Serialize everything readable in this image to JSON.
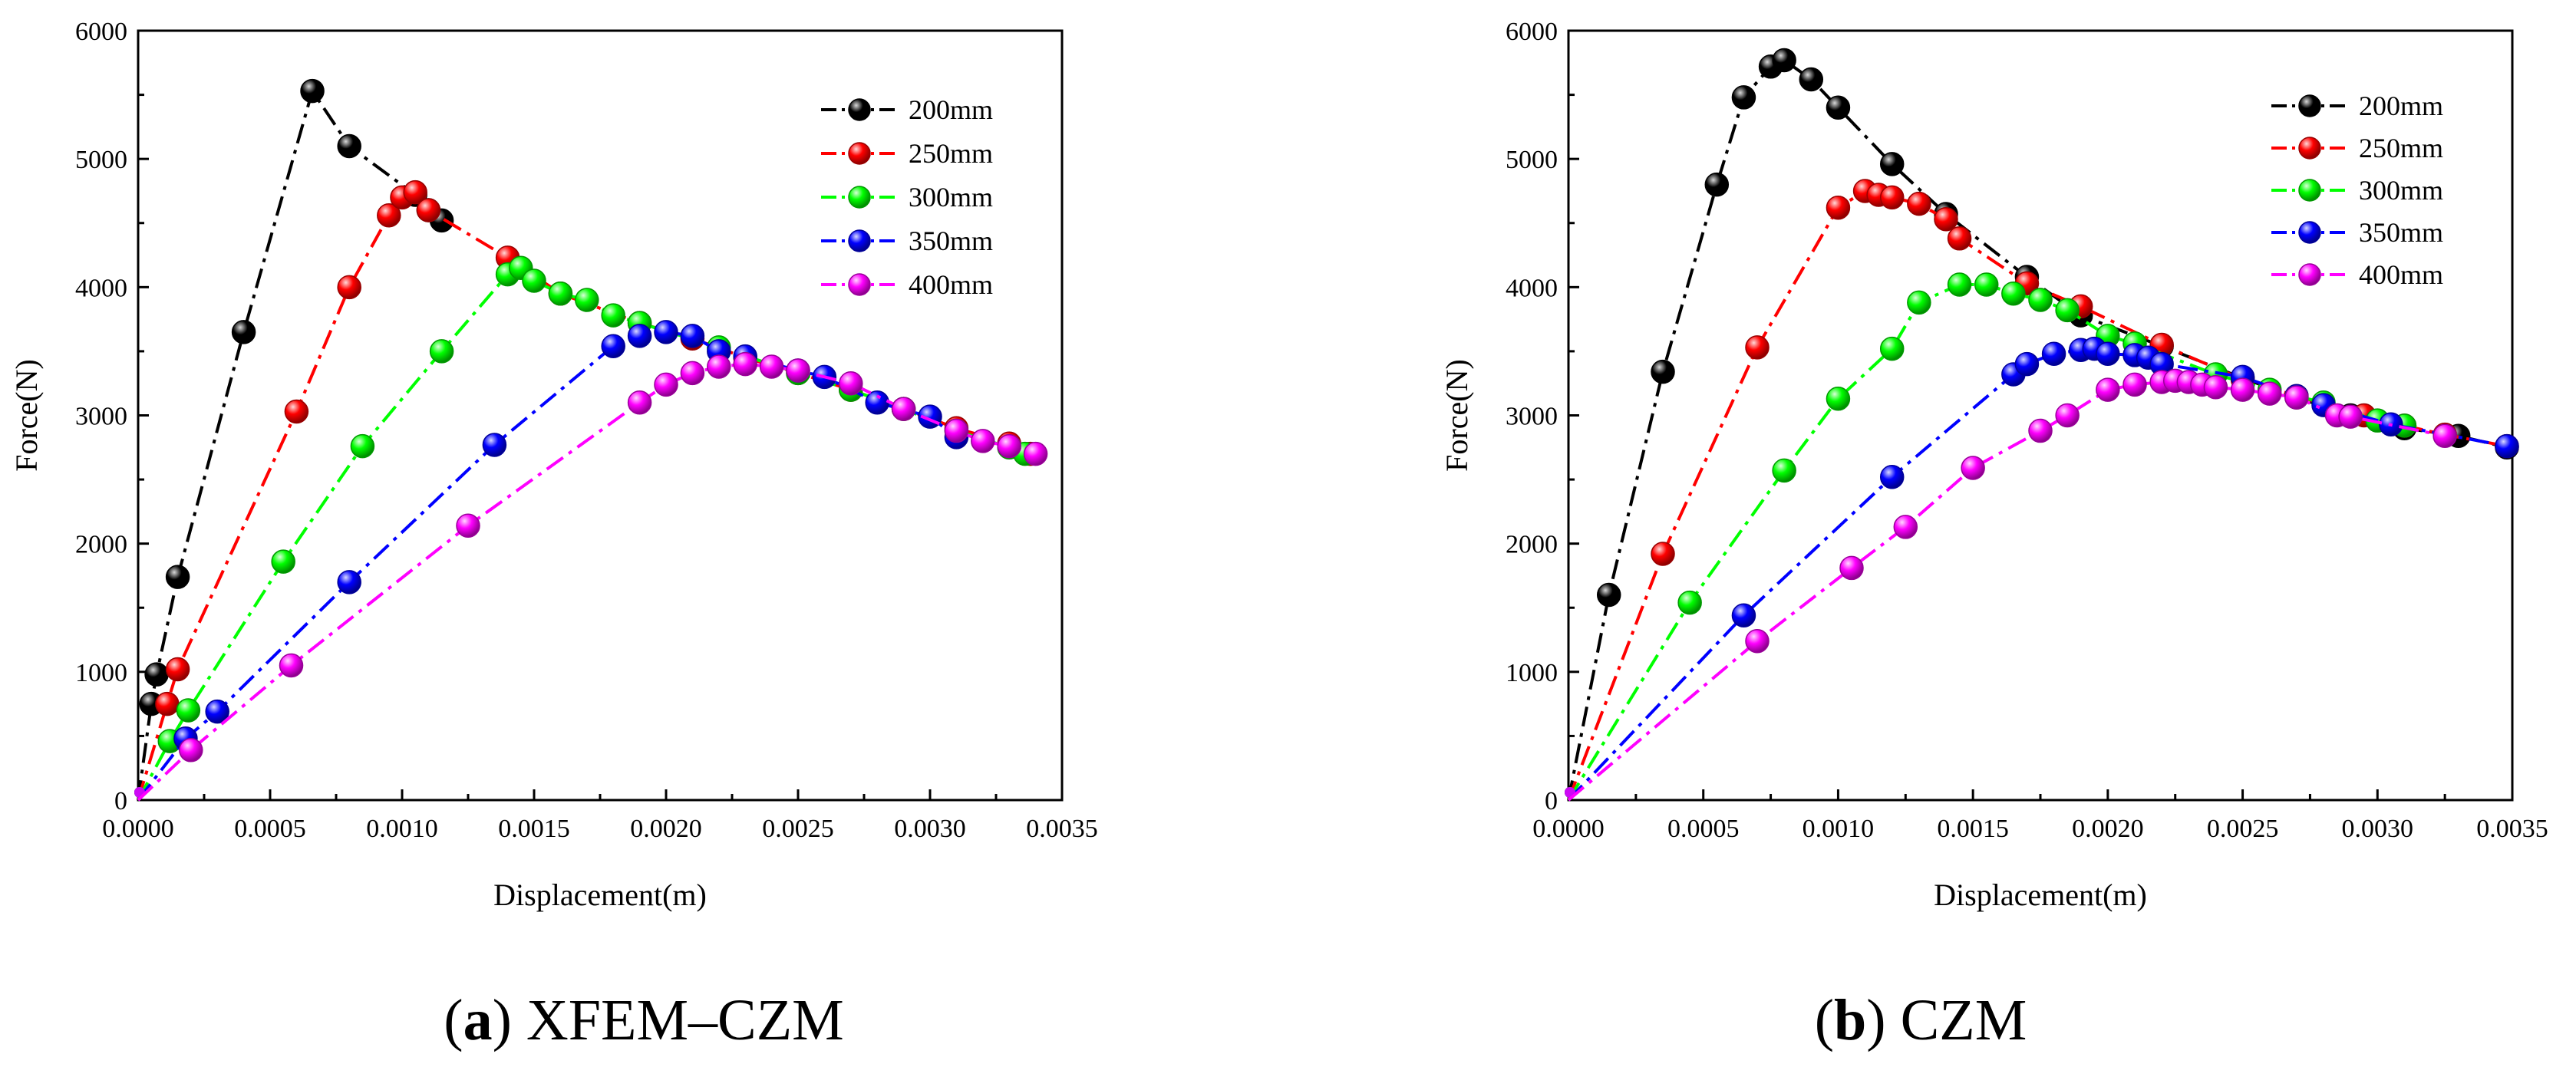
{
  "chart_data": [
    {
      "type": "line",
      "caption_letter": "a",
      "caption_text": " XFEM–CZM",
      "xlabel": "Displacement(m)",
      "ylabel": "Force(N)",
      "xlim": [
        0,
        0.0035
      ],
      "ylim": [
        0,
        6000
      ],
      "xticks": [
        "0.0000",
        "0.0005",
        "0.0010",
        "0.0015",
        "0.0020",
        "0.0025",
        "0.0030",
        "0.0035"
      ],
      "yticks": [
        "0",
        "1000",
        "2000",
        "3000",
        "4000",
        "5000",
        "6000"
      ],
      "legend_position": "top-right",
      "series": [
        {
          "name": "200mm",
          "color": "#000000",
          "points": [
            [
              0,
              0
            ],
            [
              5e-05,
              750
            ],
            [
              7e-05,
              980
            ],
            [
              0.00015,
              1740
            ],
            [
              0.0004,
              3650
            ],
            [
              0.00066,
              5530
            ],
            [
              0.0008,
              5100
            ],
            [
              0.00105,
              4720
            ],
            [
              0.0011,
              4600
            ],
            [
              0.00115,
              4520
            ]
          ]
        },
        {
          "name": "250mm",
          "color": "#ff0000",
          "points": [
            [
              0,
              0
            ],
            [
              0.00011,
              750
            ],
            [
              0.00015,
              1020
            ],
            [
              0.0006,
              3030
            ],
            [
              0.0008,
              4000
            ],
            [
              0.00095,
              4560
            ],
            [
              0.001,
              4700
            ],
            [
              0.00105,
              4740
            ],
            [
              0.0011,
              4600
            ],
            [
              0.0014,
              4230
            ],
            [
              0.0016,
              3950
            ],
            [
              0.0019,
              3720
            ],
            [
              0.0021,
              3600
            ],
            [
              0.0023,
              3450
            ],
            [
              0.0025,
              3330
            ],
            [
              0.0027,
              3200
            ],
            [
              0.0029,
              3050
            ],
            [
              0.0031,
              2900
            ],
            [
              0.0033,
              2780
            ],
            [
              0.00338,
              2700
            ]
          ]
        },
        {
          "name": "300mm",
          "color": "#00ff00",
          "points": [
            [
              0,
              0
            ],
            [
              0.00012,
              460
            ],
            [
              0.00019,
              700
            ],
            [
              0.00055,
              1860
            ],
            [
              0.00085,
              2760
            ],
            [
              0.00115,
              3500
            ],
            [
              0.0014,
              4100
            ],
            [
              0.00145,
              4150
            ],
            [
              0.0015,
              4050
            ],
            [
              0.0016,
              3950
            ],
            [
              0.0017,
              3900
            ],
            [
              0.0018,
              3780
            ],
            [
              0.0019,
              3720
            ],
            [
              0.0022,
              3530
            ],
            [
              0.0025,
              3330
            ],
            [
              0.0027,
              3200
            ],
            [
              0.0029,
              3050
            ],
            [
              0.0031,
              2880
            ],
            [
              0.0033,
              2750
            ],
            [
              0.00336,
              2700
            ]
          ]
        },
        {
          "name": "350mm",
          "color": "#0000ff",
          "points": [
            [
              0,
              0
            ],
            [
              0.00018,
              480
            ],
            [
              0.0003,
              690
            ],
            [
              0.0008,
              1700
            ],
            [
              0.00135,
              2770
            ],
            [
              0.0018,
              3540
            ],
            [
              0.0019,
              3620
            ],
            [
              0.002,
              3650
            ],
            [
              0.0021,
              3620
            ],
            [
              0.0022,
              3500
            ],
            [
              0.0023,
              3460
            ],
            [
              0.0025,
              3350
            ],
            [
              0.0026,
              3300
            ],
            [
              0.0028,
              3100
            ],
            [
              0.003,
              2990
            ],
            [
              0.0031,
              2830
            ]
          ]
        },
        {
          "name": "400mm",
          "color": "#ff00ff",
          "points": [
            [
              0,
              0
            ],
            [
              0.0002,
              390
            ],
            [
              0.00058,
              1050
            ],
            [
              0.00125,
              2140
            ],
            [
              0.0019,
              3100
            ],
            [
              0.002,
              3240
            ],
            [
              0.0021,
              3330
            ],
            [
              0.0022,
              3380
            ],
            [
              0.0023,
              3400
            ],
            [
              0.0024,
              3380
            ],
            [
              0.0025,
              3350
            ],
            [
              0.0027,
              3250
            ],
            [
              0.0029,
              3050
            ],
            [
              0.0031,
              2880
            ],
            [
              0.0032,
              2800
            ],
            [
              0.0033,
              2760
            ],
            [
              0.0034,
              2700
            ]
          ]
        }
      ]
    },
    {
      "type": "line",
      "caption_letter": "b",
      "caption_text": " CZM",
      "xlabel": "Displacement(m)",
      "ylabel": "Force(N)",
      "xlim": [
        0,
        0.0035
      ],
      "ylim": [
        0,
        6000
      ],
      "xticks": [
        "0.0000",
        "0.0005",
        "0.0010",
        "0.0015",
        "0.0020",
        "0.0025",
        "0.0030",
        "0.0035"
      ],
      "yticks": [
        "0",
        "1000",
        "2000",
        "3000",
        "4000",
        "5000",
        "6000"
      ],
      "legend_position": "top-right",
      "series": [
        {
          "name": "200mm",
          "color": "#000000",
          "points": [
            [
              0,
              0
            ],
            [
              0.00015,
              1600
            ],
            [
              0.00035,
              3340
            ],
            [
              0.00055,
              4800
            ],
            [
              0.00065,
              5480
            ],
            [
              0.00075,
              5720
            ],
            [
              0.0008,
              5770
            ],
            [
              0.0009,
              5620
            ],
            [
              0.001,
              5400
            ],
            [
              0.0012,
              4960
            ],
            [
              0.0014,
              4570
            ],
            [
              0.0017,
              4080
            ],
            [
              0.0019,
              3780
            ],
            [
              0.0022,
              3540
            ],
            [
              0.0025,
              3290
            ],
            [
              0.0027,
              3140
            ],
            [
              0.0029,
              3000
            ],
            [
              0.0031,
              2900
            ],
            [
              0.0033,
              2840
            ],
            [
              0.00348,
              2750
            ]
          ]
        },
        {
          "name": "250mm",
          "color": "#ff0000",
          "points": [
            [
              0,
              0
            ],
            [
              0.00035,
              1920
            ],
            [
              0.0007,
              3530
            ],
            [
              0.001,
              4620
            ],
            [
              0.0011,
              4750
            ],
            [
              0.00115,
              4720
            ],
            [
              0.0012,
              4700
            ],
            [
              0.0013,
              4650
            ],
            [
              0.0014,
              4530
            ],
            [
              0.00145,
              4380
            ],
            [
              0.0017,
              4030
            ],
            [
              0.0019,
              3850
            ],
            [
              0.0022,
              3550
            ],
            [
              0.0025,
              3280
            ],
            [
              0.0027,
              3150
            ],
            [
              0.00295,
              3000
            ],
            [
              0.0031,
              2920
            ],
            [
              0.00325,
              2850
            ],
            [
              0.00348,
              2760
            ]
          ]
        },
        {
          "name": "300mm",
          "color": "#00ff00",
          "points": [
            [
              0,
              0
            ],
            [
              0.00045,
              1540
            ],
            [
              0.0008,
              2570
            ],
            [
              0.001,
              3130
            ],
            [
              0.0012,
              3520
            ],
            [
              0.0013,
              3880
            ],
            [
              0.00145,
              4020
            ],
            [
              0.00155,
              4020
            ],
            [
              0.00165,
              3950
            ],
            [
              0.00175,
              3900
            ],
            [
              0.00185,
              3820
            ],
            [
              0.002,
              3620
            ],
            [
              0.0021,
              3560
            ],
            [
              0.0024,
              3320
            ],
            [
              0.0026,
              3200
            ],
            [
              0.0028,
              3100
            ],
            [
              0.003,
              2960
            ],
            [
              0.0031,
              2920
            ]
          ]
        },
        {
          "name": "350mm",
          "color": "#0000ff",
          "points": [
            [
              0,
              0
            ],
            [
              0.00065,
              1440
            ],
            [
              0.0012,
              2520
            ],
            [
              0.00165,
              3320
            ],
            [
              0.0017,
              3400
            ],
            [
              0.0018,
              3480
            ],
            [
              0.0019,
              3510
            ],
            [
              0.00195,
              3520
            ],
            [
              0.002,
              3480
            ],
            [
              0.0021,
              3470
            ],
            [
              0.00215,
              3450
            ],
            [
              0.0022,
              3400
            ],
            [
              0.0025,
              3300
            ],
            [
              0.0027,
              3150
            ],
            [
              0.0028,
              3080
            ],
            [
              0.00305,
              2930
            ],
            [
              0.00348,
              2760
            ]
          ]
        },
        {
          "name": "400mm",
          "color": "#ff00ff",
          "points": [
            [
              0,
              0
            ],
            [
              0.0007,
              1240
            ],
            [
              0.00105,
              1810
            ],
            [
              0.00125,
              2130
            ],
            [
              0.0015,
              2590
            ],
            [
              0.00175,
              2880
            ],
            [
              0.00185,
              3000
            ],
            [
              0.002,
              3200
            ],
            [
              0.0021,
              3240
            ],
            [
              0.0022,
              3260
            ],
            [
              0.00225,
              3270
            ],
            [
              0.0023,
              3260
            ],
            [
              0.00235,
              3240
            ],
            [
              0.0024,
              3220
            ],
            [
              0.0025,
              3200
            ],
            [
              0.0026,
              3170
            ],
            [
              0.0027,
              3140
            ],
            [
              0.00285,
              3000
            ],
            [
              0.0029,
              2990
            ],
            [
              0.00325,
              2840
            ]
          ]
        }
      ]
    }
  ]
}
